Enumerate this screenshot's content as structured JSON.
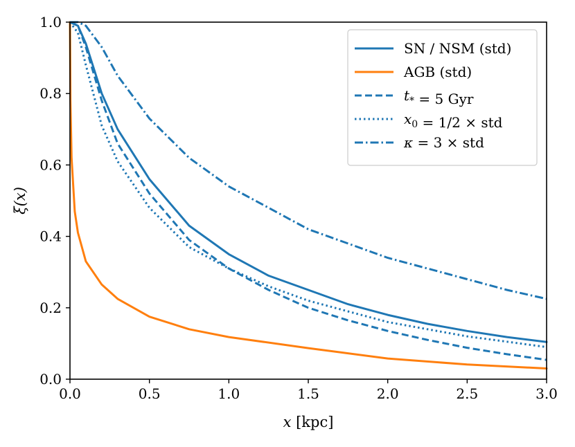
{
  "chart_data": {
    "type": "line",
    "title": "",
    "xlabel": "x [kpc]",
    "ylabel": "ξ(x)",
    "xlim": [
      0,
      3
    ],
    "ylim": [
      0,
      1
    ],
    "grid": false,
    "legend_position": "top-right",
    "x_ticks": [
      "0.0",
      "0.5",
      "1.0",
      "1.5",
      "2.0",
      "2.5",
      "3.0"
    ],
    "y_ticks": [
      "0.0",
      "0.2",
      "0.4",
      "0.6",
      "0.8",
      "1.0"
    ],
    "x": [
      0,
      0.05,
      0.1,
      0.2,
      0.3,
      0.5,
      0.75,
      1.0,
      1.25,
      1.5,
      1.75,
      2.0,
      2.25,
      2.5,
      2.75,
      3.0
    ],
    "series": [
      {
        "name": "SN / NSM (std)",
        "color": "#1f77b4",
        "style": "solid",
        "values": [
          1.0,
          0.99,
          0.94,
          0.8,
          0.7,
          0.56,
          0.43,
          0.35,
          0.29,
          0.25,
          0.21,
          0.18,
          0.155,
          0.135,
          0.118,
          0.104
        ]
      },
      {
        "name": "AGB (std)",
        "color": "#ff7f0e",
        "style": "solid",
        "x": [
          0,
          0.003,
          0.01,
          0.03,
          0.05,
          0.1,
          0.2,
          0.3,
          0.5,
          0.75,
          1.0,
          1.5,
          2.0,
          2.5,
          3.0
        ],
        "values": [
          1.0,
          0.78,
          0.62,
          0.47,
          0.41,
          0.33,
          0.265,
          0.225,
          0.175,
          0.14,
          0.118,
          0.087,
          0.058,
          0.041,
          0.03
        ]
      },
      {
        "name": "t_* = 5 Gyr",
        "color": "#1f77b4",
        "style": "dashed",
        "values": [
          1.0,
          0.99,
          0.93,
          0.78,
          0.66,
          0.52,
          0.39,
          0.31,
          0.25,
          0.2,
          0.165,
          0.135,
          0.11,
          0.088,
          0.07,
          0.054
        ]
      },
      {
        "name": "x_0 = 1/2 × std",
        "color": "#1f77b4",
        "style": "dotted",
        "values": [
          1.0,
          0.97,
          0.88,
          0.71,
          0.61,
          0.48,
          0.37,
          0.31,
          0.26,
          0.22,
          0.19,
          0.16,
          0.14,
          0.12,
          0.105,
          0.09
        ]
      },
      {
        "name": "κ = 3 × std",
        "color": "#1f77b4",
        "style": "dashdot",
        "values": [
          1.0,
          1.0,
          0.99,
          0.93,
          0.85,
          0.73,
          0.62,
          0.54,
          0.48,
          0.42,
          0.38,
          0.34,
          0.31,
          0.28,
          0.25,
          0.225
        ]
      }
    ]
  }
}
